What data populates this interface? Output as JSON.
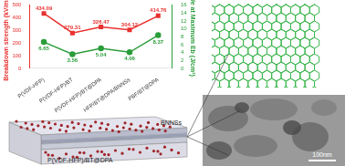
{
  "chart_data": {
    "type": "line",
    "categories": [
      "P(VDF-HFP)",
      "P(VDF-HFP)/BT",
      "P(VDF-HFP)/BT@DPA",
      "HFP/BT@DPA/BNNSs",
      "PBF/BT@DPA"
    ],
    "y_label": "Breakdown strength (kV/mm)",
    "y2_label": "Ue at Maximum Eb (J/cm³)",
    "series": [
      {
        "color": "#e8312f",
        "marker": "square",
        "values": [
          434.09,
          279.31,
          326.47,
          304.12,
          414.76
        ]
      },
      {
        "color": "#2a9d3a",
        "marker": "circle",
        "axis": "y2",
        "values": [
          6.65,
          3.56,
          5.04,
          4.06,
          8.37
        ]
      }
    ],
    "ylim": [
      0,
      500
    ],
    "yticks": [
      0,
      100,
      200,
      300,
      400,
      500
    ],
    "y2lim": [
      0,
      16
    ],
    "y2ticks": [
      0,
      2,
      4,
      6,
      8,
      10,
      12,
      14,
      16
    ],
    "grid": false,
    "data_labels": true
  },
  "diagram": {
    "film": "P(VDF-HFP)/BT@DPA",
    "sheets": "BNNSs",
    "scale_bar": "100nm"
  }
}
